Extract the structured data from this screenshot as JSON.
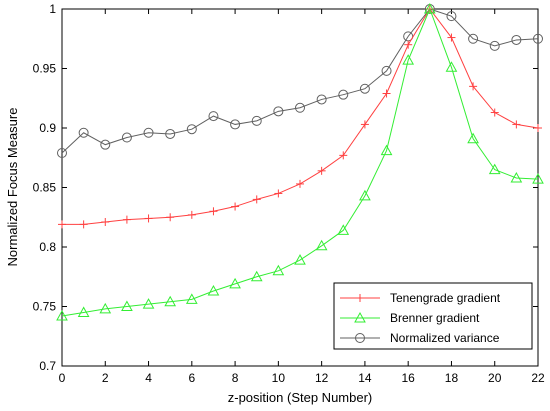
{
  "chart_data": {
    "type": "line",
    "xlabel": "z-position (Step Number)",
    "ylabel": "Normalized Focus Measure",
    "xlim": [
      0,
      22
    ],
    "ylim": [
      0.7,
      1.0
    ],
    "x_ticks": [
      "0",
      "2",
      "4",
      "6",
      "8",
      "10",
      "12",
      "14",
      "16",
      "18",
      "20",
      "22"
    ],
    "y_ticks": [
      "0.7",
      "0.75",
      "0.8",
      "0.85",
      "0.9",
      "0.95",
      "1"
    ],
    "grid": false,
    "legend_position": "bottom-right",
    "x": [
      0,
      1,
      2,
      3,
      4,
      5,
      6,
      7,
      8,
      9,
      10,
      11,
      12,
      13,
      14,
      15,
      16,
      17,
      18,
      19,
      20,
      21,
      22
    ],
    "series": [
      {
        "name": "Tenengrade gradient",
        "color": "#ff4040",
        "marker": "plus",
        "values": [
          0.819,
          0.819,
          0.821,
          0.823,
          0.824,
          0.825,
          0.827,
          0.83,
          0.834,
          0.84,
          0.845,
          0.853,
          0.864,
          0.877,
          0.903,
          0.929,
          0.97,
          1.0,
          0.976,
          0.935,
          0.913,
          0.903,
          0.9
        ]
      },
      {
        "name": "Brenner gradient",
        "color": "#33ee33",
        "marker": "triangle",
        "values": [
          0.742,
          0.745,
          0.748,
          0.75,
          0.752,
          0.754,
          0.756,
          0.763,
          0.769,
          0.775,
          0.78,
          0.789,
          0.801,
          0.814,
          0.843,
          0.881,
          0.957,
          1.0,
          0.951,
          0.891,
          0.865,
          0.858,
          0.857
        ]
      },
      {
        "name": "Normalized variance",
        "color": "#606060",
        "marker": "circle",
        "values": [
          0.879,
          0.896,
          0.886,
          0.892,
          0.896,
          0.895,
          0.899,
          0.91,
          0.903,
          0.906,
          0.914,
          0.917,
          0.924,
          0.928,
          0.933,
          0.948,
          0.977,
          1.0,
          0.994,
          0.975,
          0.969,
          0.974,
          0.975
        ]
      }
    ]
  }
}
